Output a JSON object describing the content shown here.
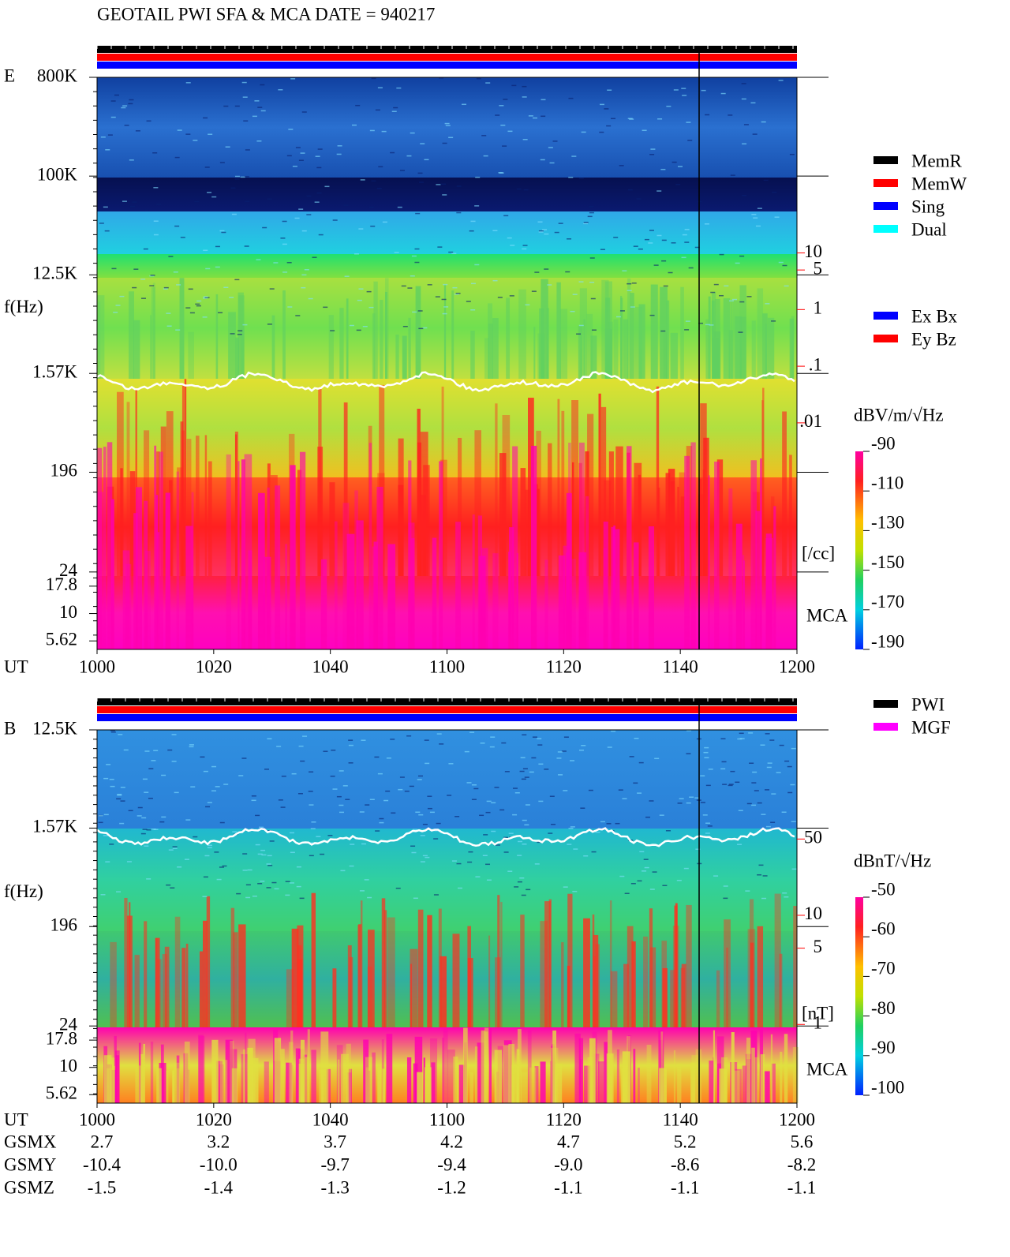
{
  "title": "GEOTAIL  PWI SFA & MCA   DATE = 940217",
  "chart_data": [
    {
      "type": "spectrogram",
      "panel": "E",
      "ylabel": "f(Hz)",
      "xlabel": "UT",
      "log_y": true,
      "ylim": [
        4.7,
        800000
      ],
      "yticks": [
        {
          "value": 800000,
          "label": "800K"
        },
        {
          "value": 100000,
          "label": "100K"
        },
        {
          "value": 12500,
          "label": "12.5K"
        },
        {
          "value": 1570,
          "label": "1.57K"
        },
        196,
        24,
        17.8,
        10,
        5.62
      ],
      "xticks": [
        "1000",
        "1020",
        "1040",
        "1100",
        "1120",
        "1140",
        "1200"
      ],
      "y2lim": [
        1e-06,
        12600
      ],
      "y2ticks": [
        10,
        5,
        1,
        {
          "value": 0.1,
          "label": ".1"
        },
        {
          "value": 0.01,
          "label": ".01"
        }
      ],
      "y2label": "[/cc]",
      "y2color": "#ff0000",
      "mca_label": "MCA",
      "colorbar": {
        "label": "dBV/m/√Hz",
        "lim": [
          -190,
          -90
        ],
        "ticks": [
          -90,
          -110,
          -130,
          -150,
          -170,
          -190
        ]
      },
      "legend": [
        {
          "name": "MemR",
          "color": "#000000"
        },
        {
          "name": "MemW",
          "color": "#ff0000"
        },
        {
          "name": "Sing",
          "color": "#0000ff"
        },
        {
          "name": "Dual",
          "color": "#00ffff"
        }
      ],
      "legend2": [
        {
          "name": "Ex Bx",
          "color": "#0000ff"
        },
        {
          "name": "Ey Bz",
          "color": "#ff0000"
        }
      ]
    },
    {
      "type": "spectrogram",
      "panel": "B",
      "ylabel": "f(Hz)",
      "xlabel": "UT",
      "log_y": true,
      "ylim": [
        4.7,
        12500
      ],
      "yticks": [
        {
          "value": 12500,
          "label": "12.5K"
        },
        {
          "value": 1570,
          "label": "1.57K"
        },
        196,
        24,
        17.8,
        10,
        5.62
      ],
      "xticks": [
        "1000",
        "1020",
        "1040",
        "1100",
        "1120",
        "1140",
        "1200"
      ],
      "y2lim": [
        0.19,
        500
      ],
      "y2ticks": [
        50,
        10,
        5,
        1
      ],
      "y2label": "[nT]",
      "y2color": "#ff0000",
      "mca_label": "MCA",
      "colorbar": {
        "label": "dBnT/√Hz",
        "lim": [
          -100,
          -50
        ],
        "ticks": [
          -50,
          -60,
          -70,
          -80,
          -90,
          -100
        ]
      },
      "legend": [
        {
          "name": "PWI",
          "color": "#000000"
        },
        {
          "name": "MGF",
          "color": "#ff00ff"
        }
      ]
    }
  ],
  "orbit": {
    "rows": [
      {
        "label": "GSMX",
        "values": [
          "2.7",
          "3.2",
          "3.7",
          "4.2",
          "4.7",
          "5.2",
          "5.6"
        ]
      },
      {
        "label": "GSMY",
        "values": [
          "-10.4",
          "-10.0",
          "-9.7",
          "-9.4",
          "-9.0",
          "-8.6",
          "-8.2"
        ]
      },
      {
        "label": "GSMZ",
        "values": [
          "-1.5",
          "-1.4",
          "-1.3",
          "-1.2",
          "-1.1",
          "-1.1",
          "-1.1"
        ]
      }
    ]
  }
}
